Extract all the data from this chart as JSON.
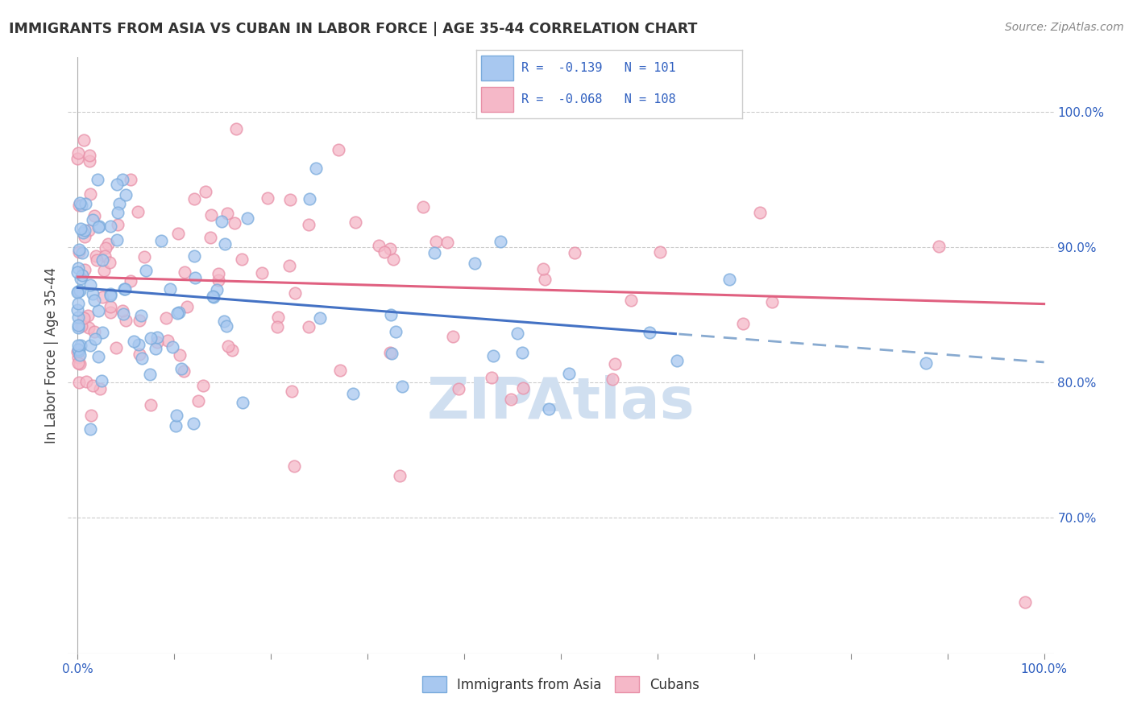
{
  "title": "IMMIGRANTS FROM ASIA VS CUBAN IN LABOR FORCE | AGE 35-44 CORRELATION CHART",
  "source": "Source: ZipAtlas.com",
  "ylabel": "In Labor Force | Age 35-44",
  "right_yticks": [
    0.7,
    0.8,
    0.9,
    1.0
  ],
  "right_yticklabels": [
    "70.0%",
    "80.0%",
    "90.0%",
    "100.0%"
  ],
  "xlim": [
    -0.01,
    1.01
  ],
  "ylim": [
    0.6,
    1.04
  ],
  "series_asia": {
    "color": "#a8c8f0",
    "edge_color": "#7aabdc",
    "R": -0.139,
    "N": 101,
    "intercept": 0.87,
    "slope": -0.055
  },
  "series_cuban": {
    "color": "#f5b8c8",
    "edge_color": "#e890a8",
    "R": -0.068,
    "N": 108,
    "intercept": 0.878,
    "slope": -0.02
  },
  "background_color": "#ffffff",
  "grid_color": "#cccccc",
  "title_color": "#333333",
  "trend_asia_color": "#4472c4",
  "trend_cuban_color": "#e06080",
  "watermark_text": "ZIPAtlas",
  "watermark_color": "#d0dff0"
}
